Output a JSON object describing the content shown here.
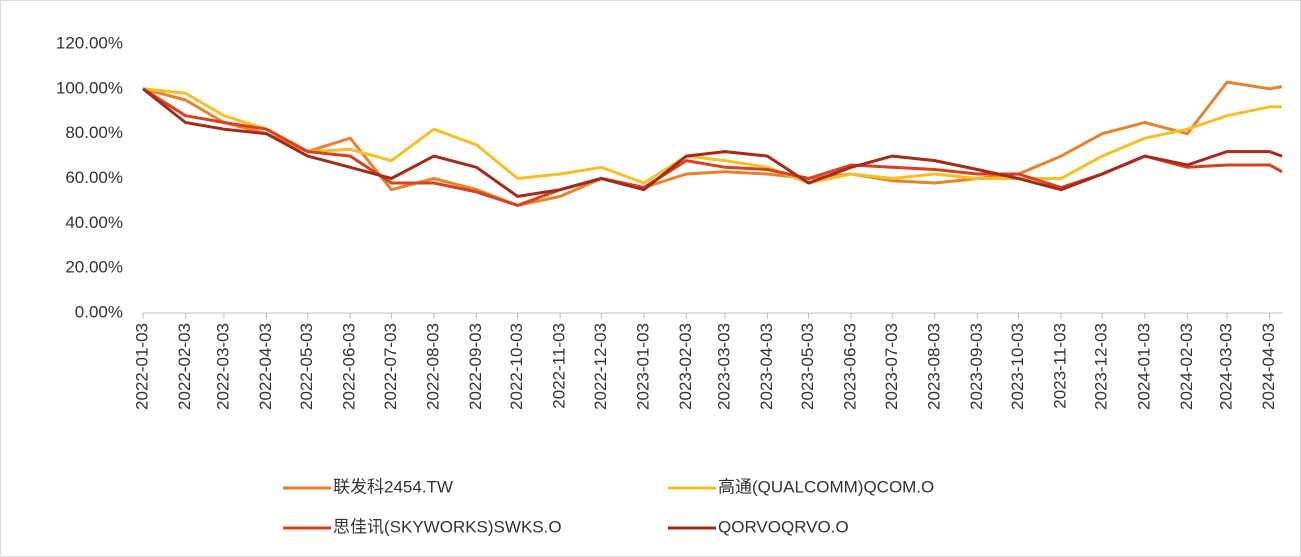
{
  "chart_data": {
    "type": "line",
    "x": [
      "2022-01-03",
      "2022-02-03",
      "2022-03-03",
      "2022-04-03",
      "2022-05-03",
      "2022-06-03",
      "2022-07-03",
      "2022-08-03",
      "2022-09-03",
      "2022-10-03",
      "2022-11-03",
      "2022-12-03",
      "2023-01-03",
      "2023-02-03",
      "2023-03-03",
      "2023-04-03",
      "2023-05-03",
      "2023-06-03",
      "2023-07-03",
      "2023-08-03",
      "2023-09-03",
      "2023-10-03",
      "2023-11-03",
      "2023-12-03",
      "2024-01-03",
      "2024-02-03",
      "2024-03-03",
      "2024-04-03",
      "2024-04-12"
    ],
    "series": [
      {
        "name": "联发科2454.TW",
        "color": "#e8822e",
        "values": [
          100,
          95,
          85,
          80,
          72,
          78,
          55,
          60,
          55,
          48,
          52,
          60,
          56,
          62,
          63,
          62,
          60,
          62,
          59,
          58,
          60,
          62,
          70,
          80,
          85,
          80,
          103,
          100,
          101
        ]
      },
      {
        "name": "高通(QUALCOMM)QCOM.O",
        "color": "#f5c027",
        "values": [
          100,
          98,
          88,
          82,
          72,
          73,
          68,
          82,
          75,
          60,
          62,
          65,
          58,
          70,
          68,
          65,
          58,
          62,
          60,
          62,
          60,
          60,
          60,
          70,
          78,
          82,
          88,
          92,
          92
        ]
      },
      {
        "name": "思佳讯(SKYWORKS)SWKS.O",
        "color": "#d9411e",
        "values": [
          100,
          88,
          85,
          82,
          72,
          70,
          58,
          58,
          54,
          48,
          55,
          60,
          56,
          68,
          65,
          64,
          60,
          66,
          65,
          64,
          62,
          62,
          56,
          62,
          70,
          65,
          66,
          66,
          63
        ]
      },
      {
        "name": "QORVOQRVO.O",
        "color": "#a52a1a",
        "values": [
          100,
          85,
          82,
          80,
          70,
          65,
          60,
          70,
          65,
          52,
          55,
          60,
          55,
          70,
          72,
          70,
          58,
          65,
          70,
          68,
          64,
          60,
          55,
          62,
          70,
          66,
          72,
          72,
          70
        ]
      }
    ],
    "xlim": [
      "2022-01-03",
      "2024-04-12"
    ],
    "xticks": [
      "2022-01-03",
      "2022-02-03",
      "2022-03-03",
      "2022-04-03",
      "2022-05-03",
      "2022-06-03",
      "2022-07-03",
      "2022-08-03",
      "2022-09-03",
      "2022-10-03",
      "2022-11-03",
      "2022-12-03",
      "2023-01-03",
      "2023-02-03",
      "2023-03-03",
      "2023-04-03",
      "2023-05-03",
      "2023-06-03",
      "2023-07-03",
      "2023-08-03",
      "2023-09-03",
      "2023-10-03",
      "2023-11-03",
      "2023-12-03",
      "2024-01-03",
      "2024-02-03",
      "2024-03-03",
      "2024-04-03"
    ],
    "ylim": [
      0,
      120
    ],
    "yticks": [
      {
        "value": 0,
        "label": "0.00%"
      },
      {
        "value": 20,
        "label": "20.00%"
      },
      {
        "value": 40,
        "label": "40.00%"
      },
      {
        "value": 60,
        "label": "60.00%"
      },
      {
        "value": 80,
        "label": "80.00%"
      },
      {
        "value": 100,
        "label": "100.00%"
      },
      {
        "value": 120,
        "label": "120.00%"
      }
    ],
    "grid": false
  }
}
